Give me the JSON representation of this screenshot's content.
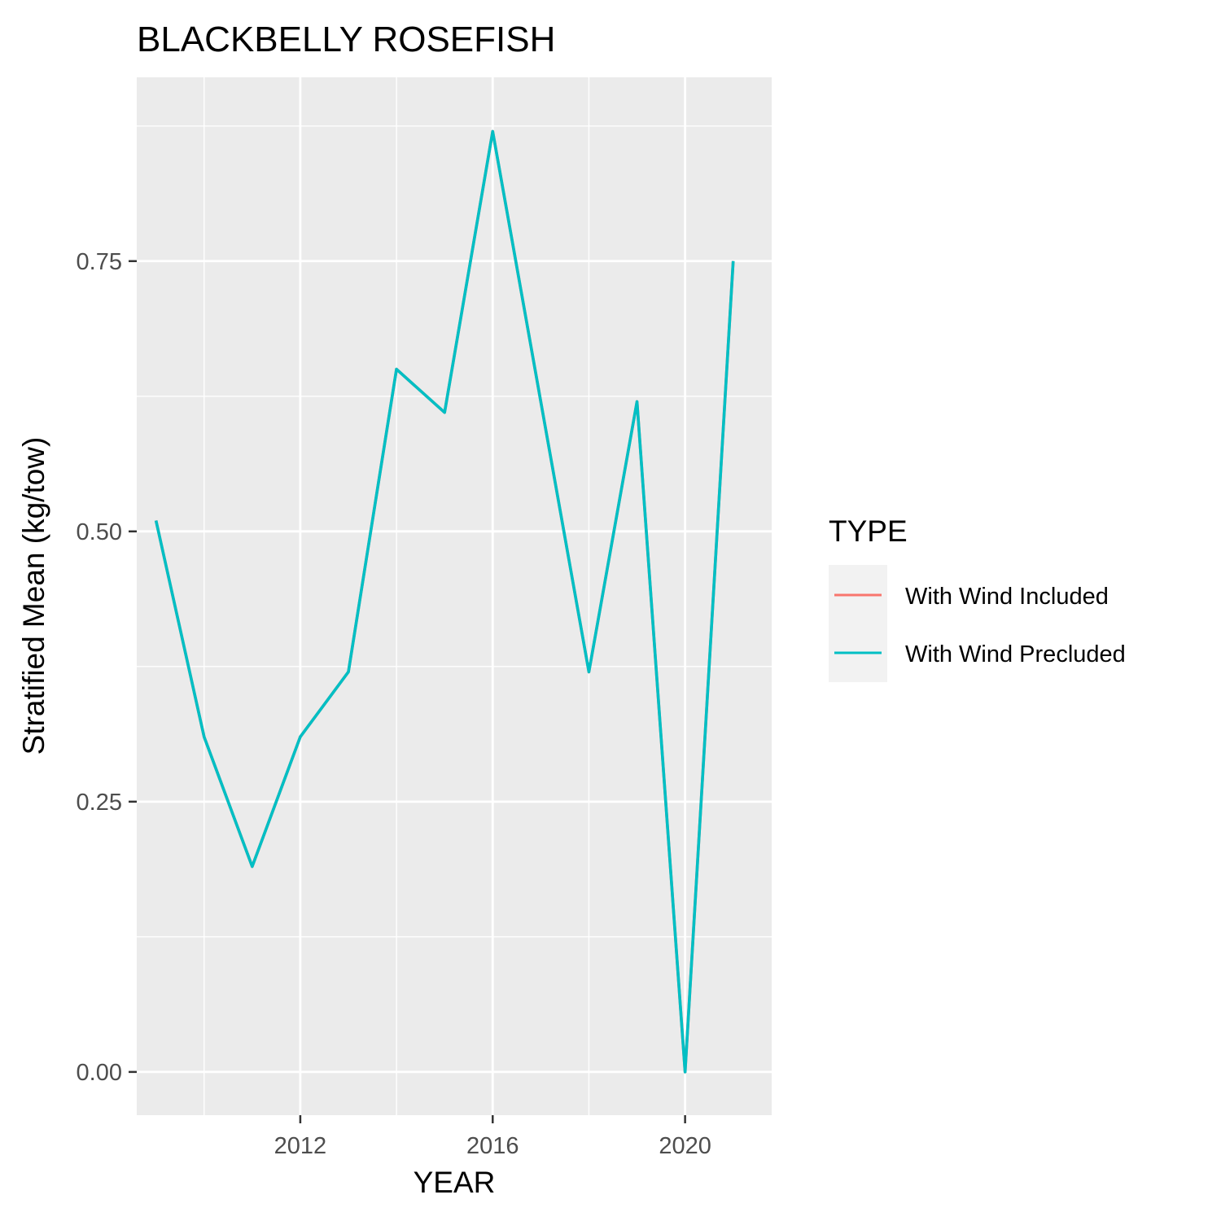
{
  "chart_data": {
    "type": "line",
    "title": "BLACKBELLY ROSEFISH",
    "xlabel": "YEAR",
    "ylabel": "Stratified Mean (kg/tow)",
    "xlim": [
      2008.6,
      2021.8
    ],
    "ylim": [
      -0.04,
      0.92
    ],
    "x_ticks": [
      2012,
      2016,
      2020
    ],
    "x_tick_labels": [
      "2012",
      "2016",
      "2020"
    ],
    "y_ticks": [
      0,
      0.25,
      0.5,
      0.75
    ],
    "y_tick_labels": [
      "0.00",
      "0.25",
      "0.50",
      "0.75"
    ],
    "grid": true,
    "legend": {
      "title": "TYPE",
      "placement": "right",
      "entries": [
        "With Wind Included",
        "With Wind Precluded"
      ]
    },
    "series": [
      {
        "name": "With Wind Included",
        "color": "#F8766D",
        "x": [
          2009,
          2010,
          2011,
          2012,
          2013,
          2014,
          2015,
          2016,
          2017,
          2018,
          2019,
          2020,
          2021
        ],
        "values": [
          0.51,
          0.31,
          0.19,
          0.31,
          0.37,
          0.65,
          0.61,
          0.87,
          0.62,
          0.37,
          0.62,
          0.0,
          0.75
        ]
      },
      {
        "name": "With Wind Precluded",
        "color": "#00BFC4",
        "x": [
          2009,
          2010,
          2011,
          2012,
          2013,
          2014,
          2015,
          2016,
          2017,
          2018,
          2019,
          2020,
          2021
        ],
        "values": [
          0.51,
          0.31,
          0.19,
          0.31,
          0.37,
          0.65,
          0.61,
          0.87,
          0.62,
          0.37,
          0.62,
          0.0,
          0.75
        ]
      }
    ],
    "colors": {
      "panel_background": "#EBEBEB",
      "grid_major": "#FFFFFF",
      "tick": "#333333",
      "legend_key_background": "#F2F2F2"
    }
  }
}
